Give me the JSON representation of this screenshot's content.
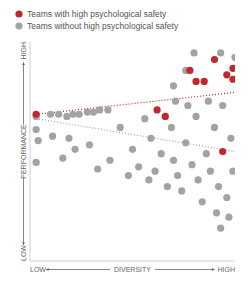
{
  "chart_data": {
    "type": "scatter",
    "xlabel": "DIVERSITY",
    "ylabel": "PERFORMANCE",
    "xlim": [
      0,
      100
    ],
    "ylim": [
      0,
      100
    ],
    "xticks": [
      {
        "value": 0,
        "label": "LOW"
      },
      {
        "value": 100,
        "label": "HIGH"
      }
    ],
    "yticks": [
      {
        "value": 0,
        "label": "LOW"
      },
      {
        "value": 100,
        "label": "HIGH"
      }
    ],
    "grid": false,
    "legend": "top-left",
    "series": [
      {
        "name": "Teams without high psychological safety",
        "color": "#a3a3a3",
        "marker": "circle",
        "x": [
          3,
          3,
          3,
          4,
          10,
          14,
          18,
          21,
          24,
          28,
          31,
          34,
          38,
          11,
          19,
          22,
          16,
          29,
          33,
          39,
          44,
          48,
          50,
          53,
          56,
          58,
          59,
          61,
          64,
          67,
          69,
          70,
          71,
          72,
          74,
          76,
          77,
          79,
          81,
          82,
          84,
          86,
          87,
          88,
          90,
          91,
          92,
          93,
          94,
          96,
          97,
          98,
          99,
          80,
          76,
          70,
          93,
          100
        ],
        "values": [
          66,
          60,
          45,
          55,
          67,
          67,
          66,
          67,
          67,
          68,
          68,
          69,
          69,
          57,
          56,
          51,
          47,
          53,
          42,
          46,
          61,
          39,
          51,
          43,
          65,
          37,
          56,
          41,
          49,
          34,
          61,
          46,
          73,
          39,
          32,
          54,
          71,
          44,
          66,
          37,
          27,
          49,
          73,
          41,
          61,
          22,
          34,
          15,
          71,
          29,
          20,
          56,
          41,
          95,
          87,
          80,
          95,
          93
        ],
        "trend": {
          "x": [
            3,
            100
          ],
          "values": [
            65,
            50
          ],
          "line_style": "dotted"
        }
      },
      {
        "name": "Teams with high psychological safety",
        "color": "#c1272d",
        "marker": "circle",
        "x": [
          3,
          62,
          66,
          78,
          85,
          90,
          96,
          99,
          99,
          81,
          94
        ],
        "values": [
          67,
          69,
          66,
          87,
          82,
          92,
          85,
          83,
          88,
          82,
          50
        ],
        "trend": {
          "x": [
            3,
            100
          ],
          "values": [
            67,
            77
          ],
          "line_style": "dotted"
        }
      }
    ]
  }
}
